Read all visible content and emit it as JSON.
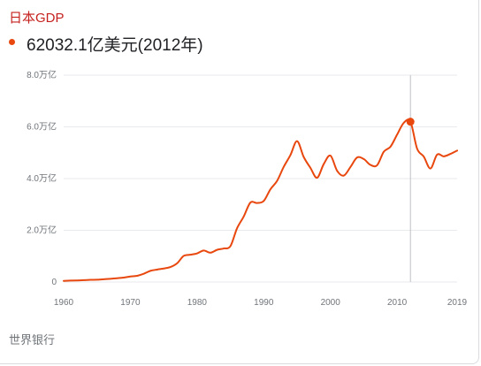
{
  "header": {
    "title": "日本GDP",
    "value_text": "62032.1亿美元(2012年)"
  },
  "footer": {
    "source": "世界银行"
  },
  "colors": {
    "series": "#e8470e",
    "title": "#c5221f",
    "grid": "#e8eaed",
    "axis_text": "#70757a",
    "hover_line": "#bdc1c6"
  },
  "chart_data": {
    "type": "line",
    "title": "日本GDP",
    "xlabel": "",
    "ylabel": "",
    "xlim": [
      1960,
      2019
    ],
    "ylim": [
      0,
      8
    ],
    "y_unit": "万亿",
    "y_ticks": [
      {
        "value": 0,
        "label": "0"
      },
      {
        "value": 2,
        "label": "2.0万亿"
      },
      {
        "value": 4,
        "label": "4.0万亿"
      },
      {
        "value": 6,
        "label": "6.0万亿"
      },
      {
        "value": 8,
        "label": "8.0万亿"
      }
    ],
    "x_ticks": [
      {
        "value": 1960,
        "label": "1960"
      },
      {
        "value": 1970,
        "label": "1970"
      },
      {
        "value": 1980,
        "label": "1980"
      },
      {
        "value": 1990,
        "label": "1990"
      },
      {
        "value": 2000,
        "label": "2000"
      },
      {
        "value": 2010,
        "label": "2010"
      },
      {
        "value": 2019,
        "label": "2019"
      }
    ],
    "grid": true,
    "highlight": {
      "x": 2012,
      "y": 6.2
    },
    "series": [
      {
        "name": "GDP",
        "x": [
          1960,
          1961,
          1962,
          1963,
          1964,
          1965,
          1966,
          1967,
          1968,
          1969,
          1970,
          1971,
          1972,
          1973,
          1974,
          1975,
          1976,
          1977,
          1978,
          1979,
          1980,
          1981,
          1982,
          1983,
          1984,
          1985,
          1986,
          1987,
          1988,
          1989,
          1990,
          1991,
          1992,
          1993,
          1994,
          1995,
          1996,
          1997,
          1998,
          1999,
          2000,
          2001,
          2002,
          2003,
          2004,
          2005,
          2006,
          2007,
          2008,
          2009,
          2010,
          2011,
          2012,
          2013,
          2014,
          2015,
          2016,
          2017,
          2018,
          2019
        ],
        "y": [
          0.044,
          0.054,
          0.061,
          0.071,
          0.084,
          0.091,
          0.106,
          0.124,
          0.147,
          0.172,
          0.213,
          0.24,
          0.318,
          0.432,
          0.48,
          0.522,
          0.577,
          0.721,
          1.01,
          1.055,
          1.105,
          1.218,
          1.135,
          1.244,
          1.296,
          1.385,
          2.079,
          2.532,
          3.072,
          3.054,
          3.133,
          3.585,
          3.909,
          4.454,
          4.907,
          5.449,
          4.833,
          4.415,
          4.032,
          4.562,
          4.888,
          4.303,
          4.115,
          4.446,
          4.815,
          4.755,
          4.53,
          4.515,
          5.038,
          5.231,
          5.7,
          6.157,
          6.203,
          5.156,
          4.85,
          4.389,
          4.927,
          4.86,
          4.955,
          5.082
        ]
      }
    ]
  }
}
